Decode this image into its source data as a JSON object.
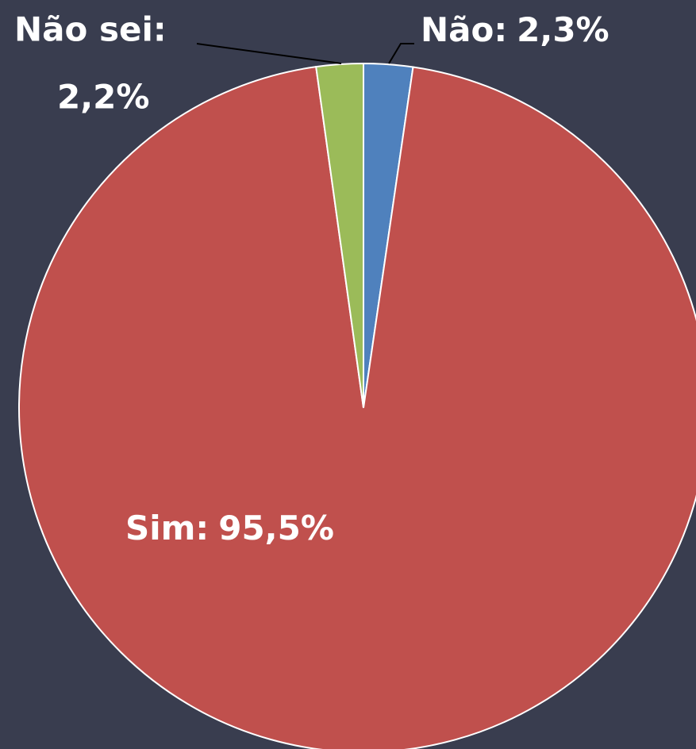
{
  "chart_data": {
    "type": "pie",
    "categories": [
      "Não:",
      "Sim:",
      "Não sei:"
    ],
    "values": [
      2.3,
      95.5,
      2.2
    ],
    "value_labels": [
      "2,3%",
      "95,5%",
      "2,2%"
    ],
    "colors": [
      "#4f81bd",
      "#c0504d",
      "#9bbb59"
    ]
  }
}
